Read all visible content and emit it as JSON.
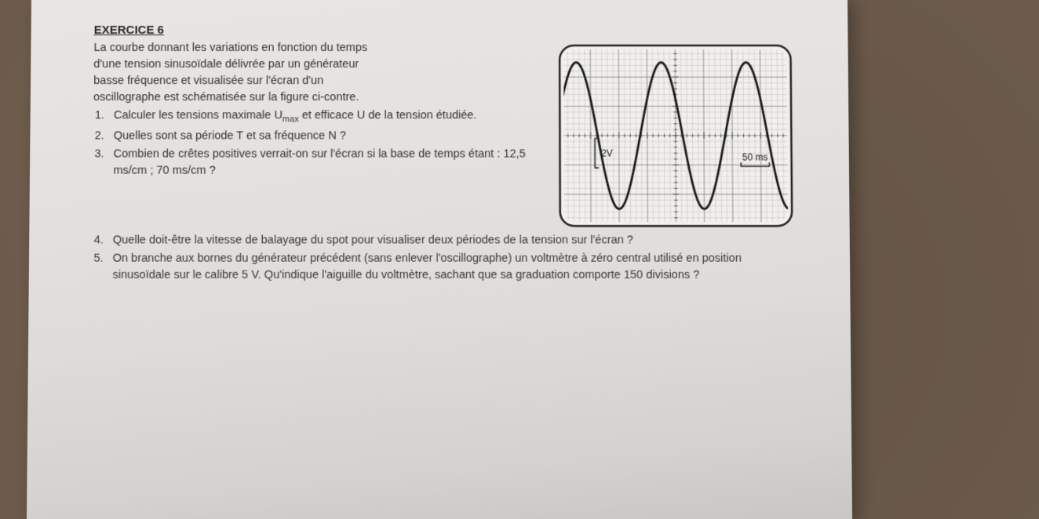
{
  "exercise": {
    "title": "EXERCICE 6",
    "intro_lines": [
      "La courbe donnant les variations en fonction du temps",
      "d'une tension sinusoïdale délivrée par un générateur",
      "basse fréquence et visualisée sur l'écran d'un",
      "oscillographe est schématisée sur la figure ci-contre."
    ],
    "q1_a": "Calculer les tensions maximale U",
    "q1_sub": "max",
    "q1_b": " et efficace U de la tension étudiée.",
    "q2": "Quelles sont sa période T et sa fréquence N ?",
    "q3": "Combien de crêtes positives verrait-on sur l'écran si la base de temps étant : 12,5 ms/cm ; 70 ms/cm ?",
    "q4": "Quelle doit-être la vitesse de balayage du spot pour visualiser deux périodes de la tension sur l'écran ?",
    "q5": "On branche aux bornes du générateur précédent (sans enlever l'oscillographe) un voltmètre à zéro central utilisé en position sinusoïdale sur le calibre 5 V. Qu'indique l'aiguille du voltmètre, sachant que sa graduation comporte 150 divisions ?"
  },
  "oscilloscope": {
    "type": "line",
    "grid": {
      "cols": 8,
      "rows": 6,
      "subdiv": 5
    },
    "screen_bg": "#f2f0ee",
    "grid_color": "#888888",
    "grid_major_width": 0.8,
    "grid_minor_color": "#b0b0b0",
    "grid_minor_width": 0.4,
    "axis_tick_color": "#444444",
    "border_color": "#222222",
    "border_width": 2.5,
    "border_radius": 18,
    "wave": {
      "color": "#1a1a1a",
      "width": 2.8,
      "amplitude_divs": 2.5,
      "period_divs": 3.0,
      "phase_start_div": -0.25,
      "vertical_offset_divs": 0
    },
    "labels": {
      "y_scale": "2V",
      "y_scale_fontsize": 12,
      "y_scale_pos": {
        "col": 1.15,
        "row": 4.1
      },
      "x_scale": "50 ms",
      "x_scale_fontsize": 12,
      "x_scale_pos": {
        "col": 6.3,
        "row": 4.05
      },
      "bracket_color": "#333333"
    }
  }
}
